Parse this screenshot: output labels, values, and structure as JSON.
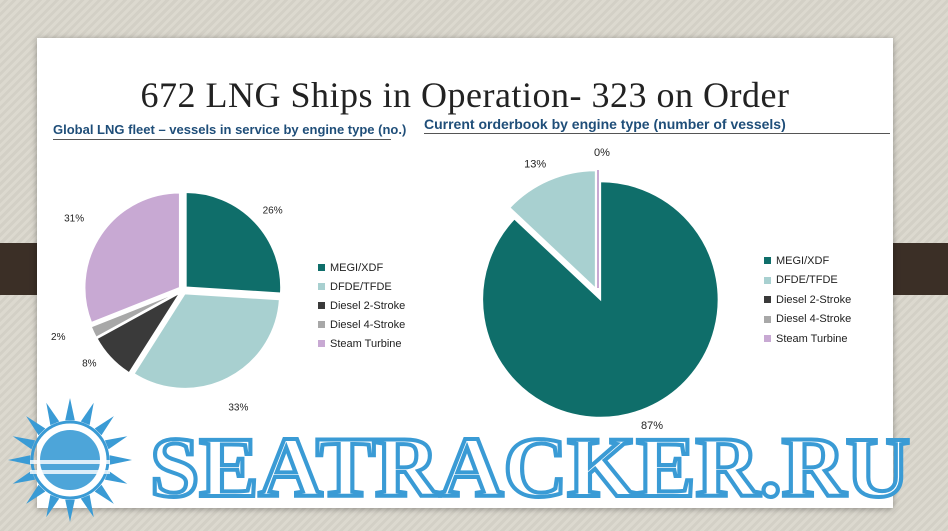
{
  "slide": {
    "title": "672 LNG Ships in Operation- 323 on Order"
  },
  "watermark": {
    "text": "SEATRACKER.RU",
    "color": "#3a9bd5"
  },
  "chart_data": [
    {
      "type": "pie",
      "title": "Global LNG fleet – vessels in service by engine type (no.)",
      "categories": [
        "MEGI/XDF",
        "DFDE/TFDE",
        "Diesel 2-Stroke",
        "Diesel 4-Stroke",
        "Steam Turbine"
      ],
      "values": [
        26,
        33,
        8,
        2,
        31
      ],
      "labels": [
        "26%",
        "33%",
        "8%",
        "2%",
        "31%"
      ],
      "colors": [
        "#0f6e6a",
        "#a8d0d0",
        "#3a3a3a",
        "#a8a8a8",
        "#c8a9d3"
      ],
      "legend": "right",
      "exploded": true
    },
    {
      "type": "pie",
      "title": "Current orderbook by engine type (number of vessels)",
      "categories": [
        "MEGI/XDF",
        "DFDE/TFDE",
        "Diesel 2-Stroke",
        "Diesel 4-Stroke",
        "Steam Turbine"
      ],
      "values": [
        87,
        13,
        0,
        0,
        0
      ],
      "labels": [
        "87%",
        "13%",
        "",
        "0%",
        ""
      ],
      "colors": [
        "#0f6e6a",
        "#a8d0d0",
        "#3a3a3a",
        "#a8a8a8",
        "#c8a9d3"
      ],
      "legend": "right",
      "exploded": true
    }
  ]
}
